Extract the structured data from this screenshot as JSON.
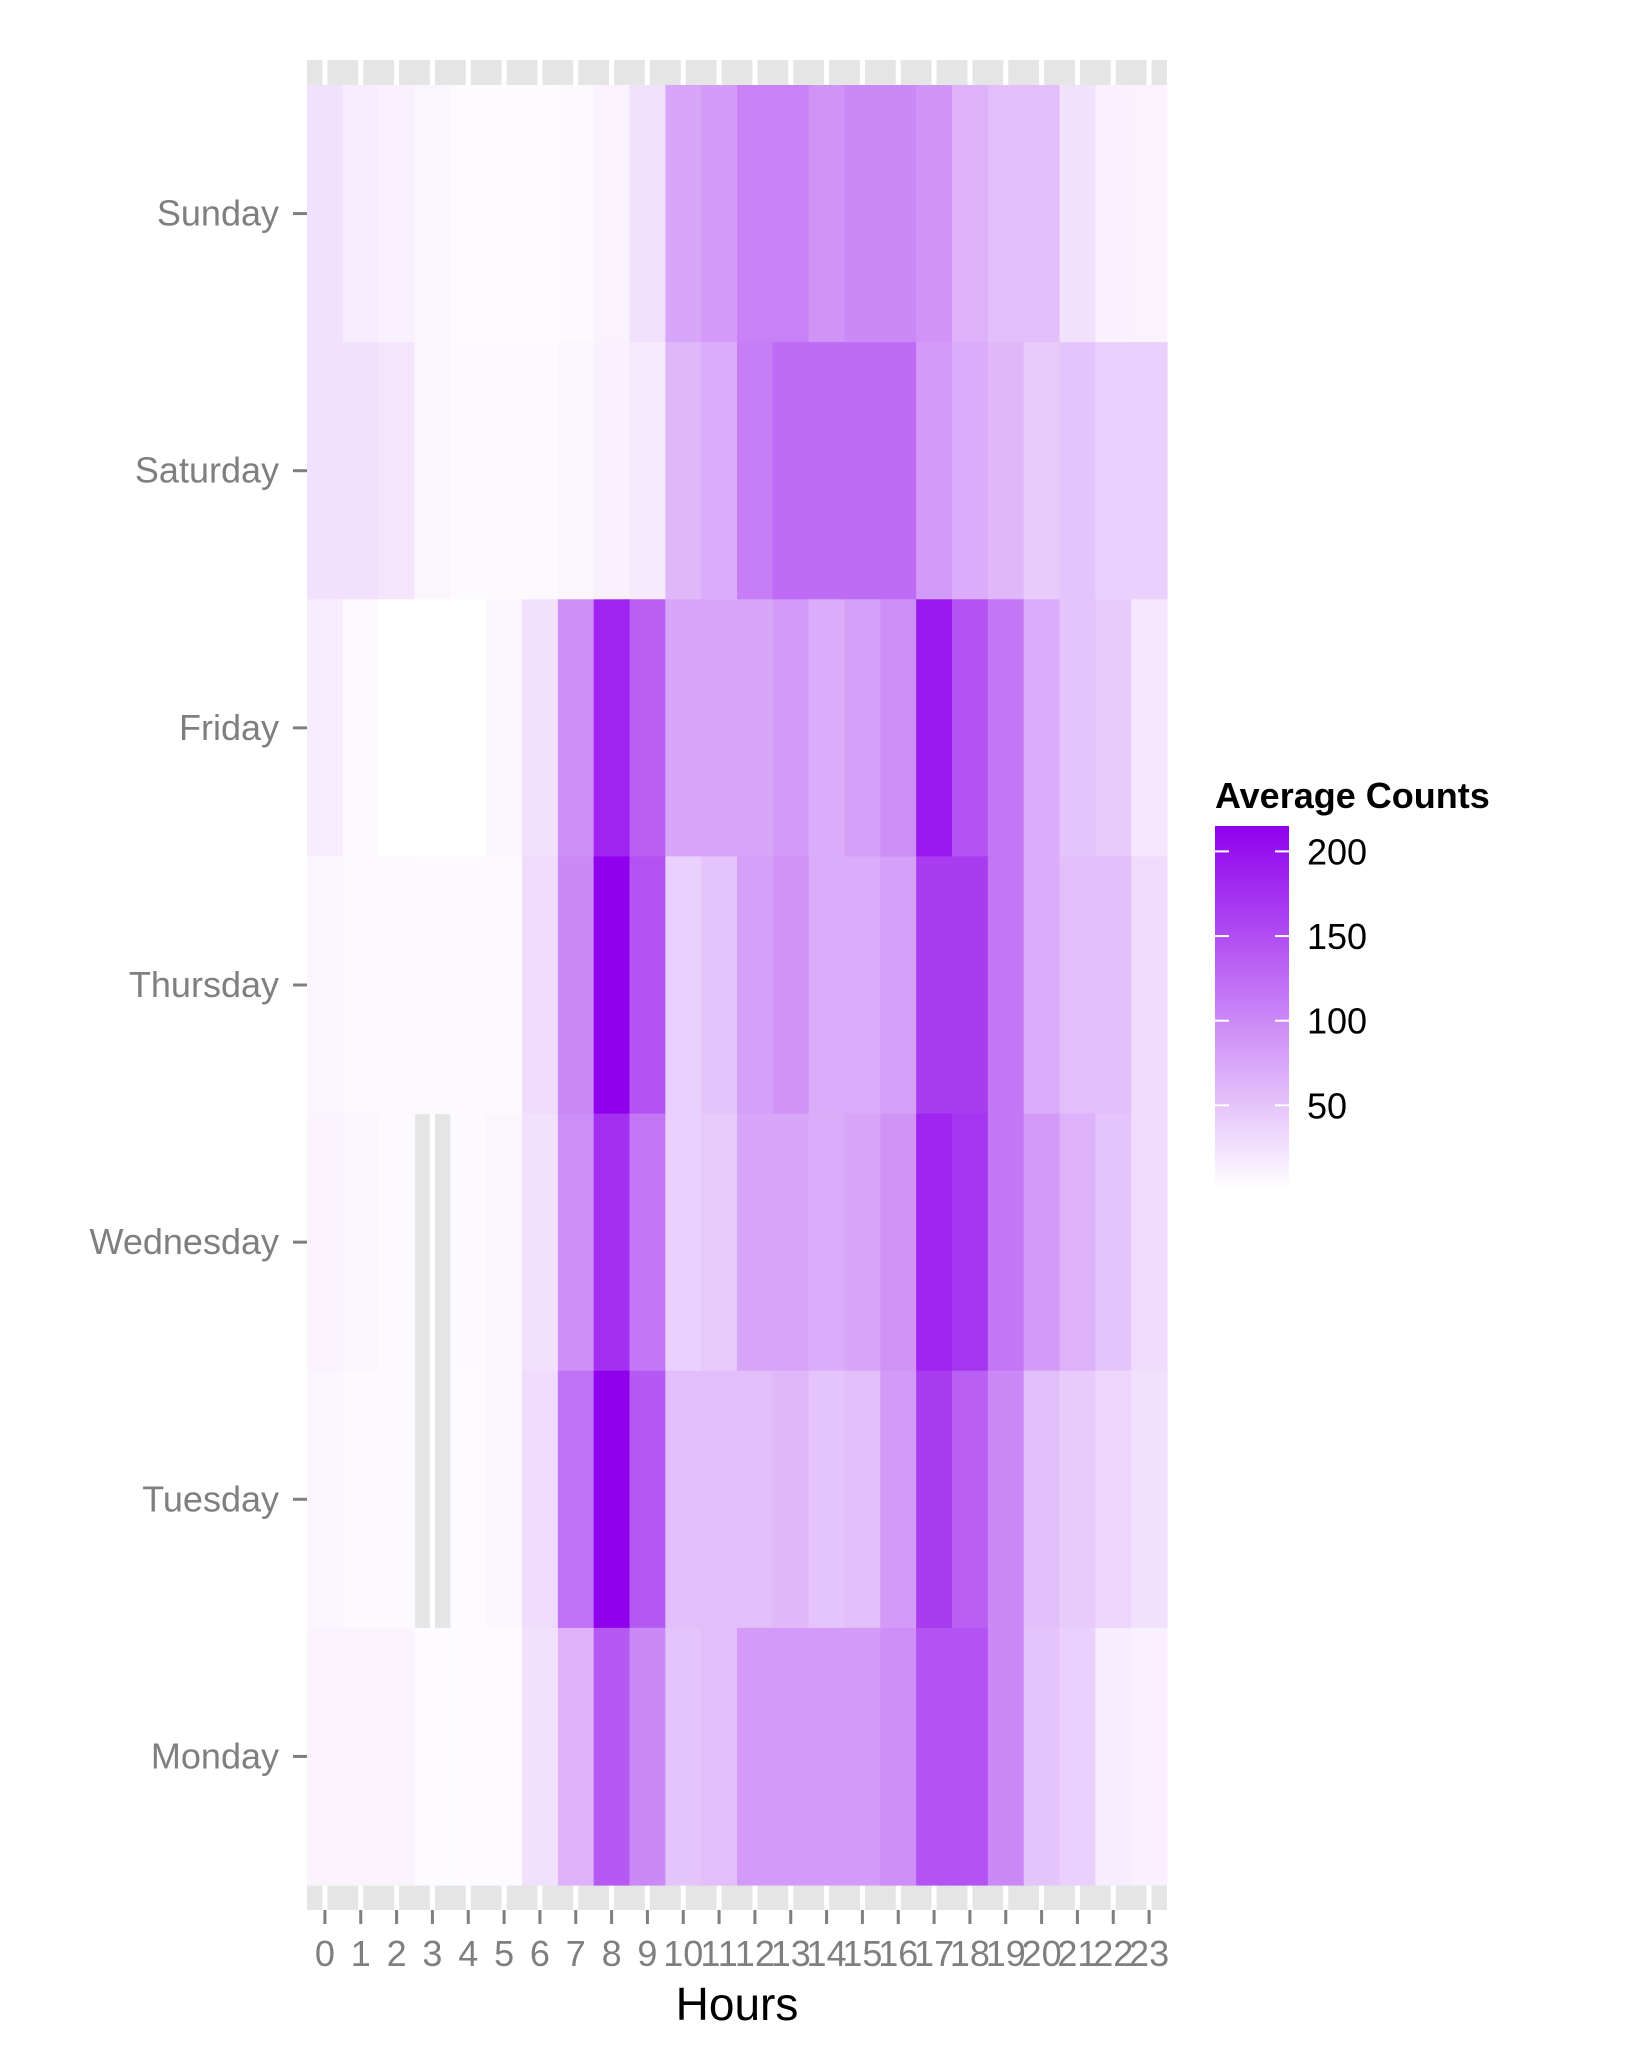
{
  "chart_data": {
    "type": "heatmap",
    "title": "",
    "xlabel": "Hours",
    "ylabel": "",
    "x": [
      "0",
      "1",
      "2",
      "3",
      "4",
      "5",
      "6",
      "7",
      "8",
      "9",
      "10",
      "11",
      "12",
      "13",
      "14",
      "15",
      "16",
      "17",
      "18",
      "19",
      "20",
      "21",
      "22",
      "23"
    ],
    "y": [
      "Monday",
      "Tuesday",
      "Wednesday",
      "Thursday",
      "Friday",
      "Saturday",
      "Sunday"
    ],
    "values": {
      "Sunday": [
        25,
        15,
        12,
        8,
        3,
        3,
        3,
        4,
        10,
        25,
        75,
        85,
        105,
        105,
        90,
        100,
        100,
        90,
        65,
        55,
        55,
        25,
        12,
        10
      ],
      "Saturday": [
        25,
        25,
        22,
        8,
        5,
        5,
        5,
        8,
        12,
        18,
        60,
        70,
        110,
        125,
        125,
        125,
        125,
        85,
        70,
        60,
        45,
        50,
        40,
        40
      ],
      "Friday": [
        15,
        5,
        0,
        0,
        0,
        8,
        25,
        95,
        185,
        135,
        75,
        75,
        75,
        85,
        70,
        80,
        95,
        195,
        145,
        115,
        70,
        50,
        45,
        20
      ],
      "Thursday": [
        8,
        6,
        6,
        5,
        5,
        5,
        30,
        100,
        215,
        145,
        40,
        50,
        80,
        90,
        70,
        70,
        80,
        165,
        165,
        115,
        70,
        55,
        55,
        30
      ],
      "Wednesday": [
        10,
        8,
        5,
        null,
        5,
        8,
        25,
        95,
        175,
        115,
        40,
        45,
        75,
        75,
        70,
        75,
        90,
        185,
        170,
        115,
        85,
        65,
        50,
        30
      ],
      "Tuesday": [
        8,
        5,
        5,
        null,
        3,
        8,
        30,
        120,
        215,
        140,
        55,
        55,
        55,
        60,
        50,
        55,
        85,
        165,
        135,
        100,
        55,
        45,
        35,
        25
      ],
      "Monday": [
        10,
        10,
        10,
        3,
        3,
        3,
        25,
        65,
        140,
        100,
        50,
        55,
        85,
        85,
        85,
        85,
        95,
        145,
        145,
        100,
        50,
        40,
        15,
        12
      ]
    },
    "zlim": [
      0,
      215
    ],
    "legend": {
      "title": "Average Counts",
      "ticks": [
        50,
        100,
        150,
        200
      ],
      "position": "right",
      "color_low": "#ffffff",
      "color_high": "#8f00ed"
    },
    "missing_color": "#e0e0e0",
    "panel_background": "#e5e5e5",
    "grid": true
  }
}
